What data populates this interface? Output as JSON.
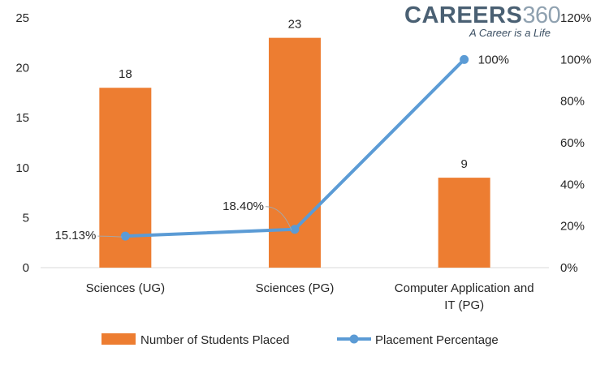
{
  "logo": {
    "brand_text": "CAREERS",
    "brand_number": "360",
    "tagline": "A Career is a Life"
  },
  "colors": {
    "bar": "#ED7D31",
    "line": "#5B9BD5",
    "text": "#262626",
    "axis": "#D9D9D9",
    "leader": "#A6A6A6"
  },
  "chart_data": {
    "type": "bar",
    "combo": "bar + line (secondary axis)",
    "categories": [
      [
        "Sciences (UG)"
      ],
      [
        "Sciences (PG)"
      ],
      [
        "Computer Application and",
        "IT (PG)"
      ]
    ],
    "series": [
      {
        "name": "Number of Students Placed",
        "type": "bar",
        "axis": "primary",
        "values": [
          18,
          23,
          9
        ],
        "labels": [
          "18",
          "23",
          "9"
        ]
      },
      {
        "name": "Placement Percentage",
        "type": "line",
        "axis": "secondary",
        "values": [
          15.13,
          18.4,
          100
        ],
        "labels": [
          "15.13%",
          "18.40%",
          "100%"
        ]
      }
    ],
    "y_primary": {
      "min": 0,
      "max": 25,
      "step": 5,
      "ticks": [
        "0",
        "5",
        "10",
        "15",
        "20",
        "25"
      ]
    },
    "y_secondary": {
      "min": 0,
      "max": 120,
      "step": 20,
      "ticks": [
        "0%",
        "20%",
        "40%",
        "60%",
        "80%",
        "100%",
        "120%"
      ]
    },
    "grid": false,
    "legend_position": "bottom"
  }
}
